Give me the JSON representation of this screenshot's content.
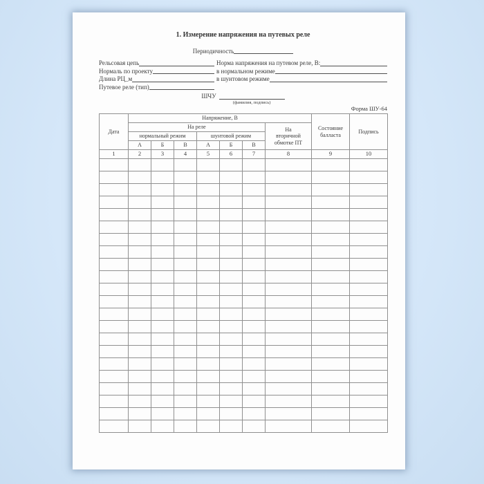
{
  "colors": {
    "background_blue": "#d5e7f9",
    "page_white": "#fdfdfd",
    "table_border_gray": "#8f8f8f",
    "text_dark": "#3b3b3b"
  },
  "document": {
    "title": "1. Измерение напряжения на путевых реле",
    "form_code": "Форма ШУ-64",
    "form": {
      "periodicity_label": "Периодичность",
      "rows": [
        {
          "left": "Рельсовая цепь",
          "right": "Норма напряжения на путевом реле, В:"
        },
        {
          "left": "Нормаль по проекту",
          "right": "в нормальном режиме"
        },
        {
          "left": "Длина РЦ_м",
          "right": "в шунтовом режиме"
        },
        {
          "left": "Путевое реле (тип)",
          "right": ""
        }
      ],
      "shchu_label": "ШЧУ",
      "signature_caption": "(фамилия, подпись)"
    }
  },
  "table": {
    "header": {
      "date": "Дата",
      "voltage_group": "Напряжение, В",
      "on_relay_group": "На реле",
      "normal_mode": "нормальный режим",
      "shunt_mode": "шунтовой режим",
      "phase_labels": [
        "А",
        "Б",
        "В",
        "А",
        "Б",
        "В"
      ],
      "secondary_winding": "На\nвторичной\nобмотке ПТ",
      "ballast_state": "Состояние\nбалласта",
      "signature": "Подпись"
    },
    "column_numbers": [
      "1",
      "2",
      "3",
      "4",
      "5",
      "6",
      "7",
      "8",
      "9",
      "10"
    ],
    "empty_row_count": 22
  }
}
